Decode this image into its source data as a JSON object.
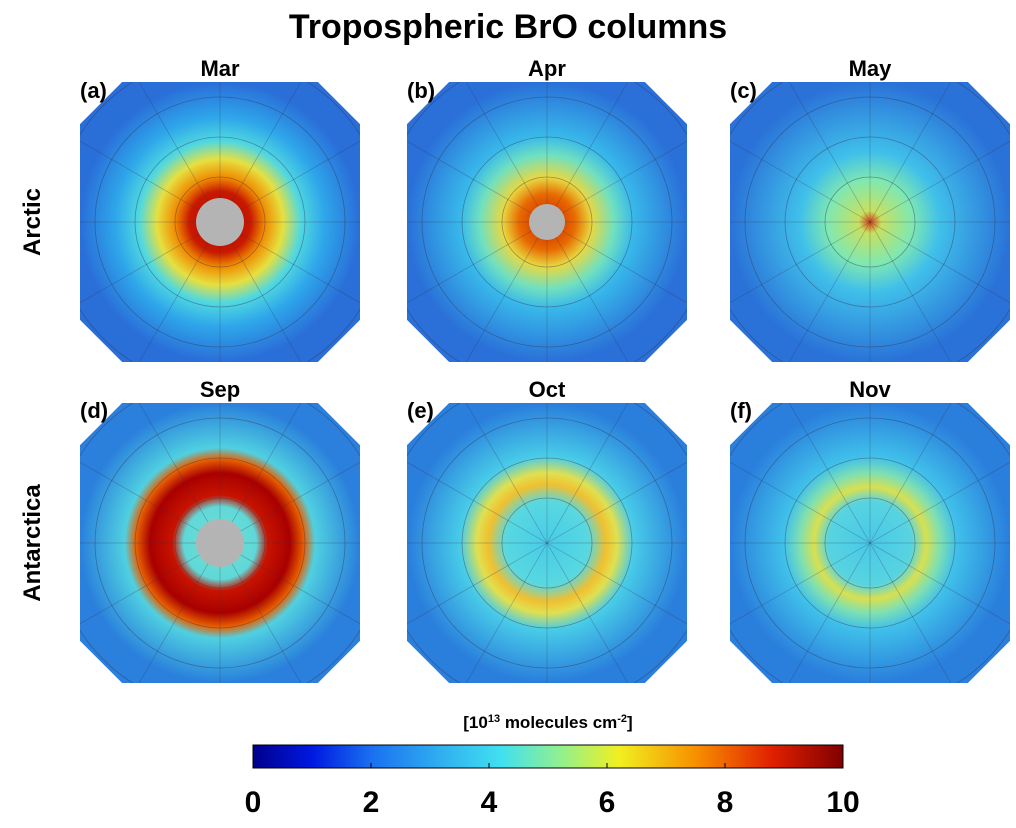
{
  "title": "Tropospheric BrO columns",
  "rows": [
    {
      "label": "Arctic",
      "panels": [
        {
          "tag": "(a)",
          "month": "Mar"
        },
        {
          "tag": "(b)",
          "month": "Apr"
        },
        {
          "tag": "(c)",
          "month": "May"
        }
      ]
    },
    {
      "label": "Antarctica",
      "panels": [
        {
          "tag": "(d)",
          "month": "Sep"
        },
        {
          "tag": "(e)",
          "month": "Oct"
        },
        {
          "tag": "(f)",
          "month": "Nov"
        }
      ]
    }
  ],
  "colorbar": {
    "label_parts": [
      "[10",
      "13",
      " molecules cm",
      "-2",
      "]"
    ],
    "range": [
      0,
      10
    ],
    "ticks": [
      0,
      2,
      4,
      6,
      8,
      10
    ]
  }
}
